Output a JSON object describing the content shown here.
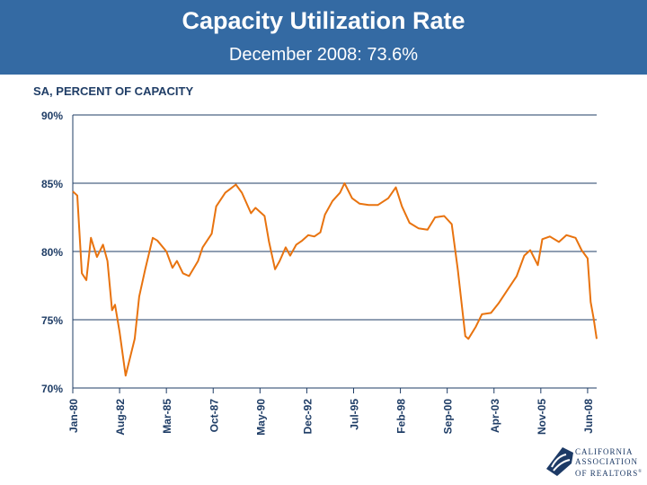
{
  "header": {
    "title": "Capacity Utilization Rate",
    "subtitle": "December 2008: 73.6%"
  },
  "logo": {
    "text": [
      "CALIFORNIA",
      "ASSOCIATION",
      "OF REALTORS®"
    ]
  },
  "chart_data": {
    "type": "line",
    "title": "Capacity Utilization Rate",
    "subtitle": "December 2008: 73.6%",
    "ylabel": "SA, PERCENT OF CAPACITY",
    "xlabel": "",
    "ylim": [
      70,
      90
    ],
    "yticks": [
      "70%",
      "75%",
      "80%",
      "85%",
      "90%"
    ],
    "ytick_values": [
      70,
      75,
      80,
      85,
      90
    ],
    "xticks": [
      "Jan-80",
      "Aug-82",
      "Mar-85",
      "Oct-87",
      "May-90",
      "Dec-92",
      "Jul-95",
      "Feb-98",
      "Sep-00",
      "Apr-03",
      "Nov-05",
      "Jun-08"
    ],
    "xlim": [
      "1980-01",
      "2008-12"
    ],
    "grid": "horizontal",
    "line_color": "#e8730f",
    "series": [
      {
        "points": [
          [
            "1980-01",
            84.4
          ],
          [
            "1980-04",
            84.1
          ],
          [
            "1980-07",
            78.4
          ],
          [
            "1980-10",
            77.9
          ],
          [
            "1981-01",
            81.0
          ],
          [
            "1981-03",
            80.3
          ],
          [
            "1981-05",
            79.6
          ],
          [
            "1981-09",
            80.5
          ],
          [
            "1981-12",
            79.3
          ],
          [
            "1982-03",
            75.7
          ],
          [
            "1982-05",
            76.1
          ],
          [
            "1982-08",
            74.1
          ],
          [
            "1982-12",
            70.9
          ],
          [
            "1983-06",
            73.6
          ],
          [
            "1983-09",
            76.7
          ],
          [
            "1984-01",
            78.7
          ],
          [
            "1984-06",
            81.0
          ],
          [
            "1984-09",
            80.8
          ],
          [
            "1985-03",
            80.0
          ],
          [
            "1985-07",
            78.8
          ],
          [
            "1985-10",
            79.3
          ],
          [
            "1986-02",
            78.4
          ],
          [
            "1986-06",
            78.2
          ],
          [
            "1986-12",
            79.3
          ],
          [
            "1987-03",
            80.3
          ],
          [
            "1987-09",
            81.3
          ],
          [
            "1987-12",
            83.3
          ],
          [
            "1988-06",
            84.3
          ],
          [
            "1989-01",
            84.9
          ],
          [
            "1989-05",
            84.3
          ],
          [
            "1989-11",
            82.8
          ],
          [
            "1990-02",
            83.2
          ],
          [
            "1990-08",
            82.6
          ],
          [
            "1990-11",
            80.7
          ],
          [
            "1991-03",
            78.7
          ],
          [
            "1991-06",
            79.3
          ],
          [
            "1991-10",
            80.3
          ],
          [
            "1992-01",
            79.7
          ],
          [
            "1992-05",
            80.5
          ],
          [
            "1992-09",
            80.8
          ],
          [
            "1993-01",
            81.2
          ],
          [
            "1993-05",
            81.1
          ],
          [
            "1993-09",
            81.4
          ],
          [
            "1993-12",
            82.7
          ],
          [
            "1994-05",
            83.7
          ],
          [
            "1994-10",
            84.3
          ],
          [
            "1995-01",
            85.0
          ],
          [
            "1995-06",
            83.9
          ],
          [
            "1995-11",
            83.5
          ],
          [
            "1996-05",
            83.4
          ],
          [
            "1996-11",
            83.4
          ],
          [
            "1997-06",
            83.9
          ],
          [
            "1997-11",
            84.7
          ],
          [
            "1998-03",
            83.3
          ],
          [
            "1998-08",
            82.1
          ],
          [
            "1999-02",
            81.7
          ],
          [
            "1999-08",
            81.6
          ],
          [
            "2000-01",
            82.5
          ],
          [
            "2000-07",
            82.6
          ],
          [
            "2000-12",
            82.0
          ],
          [
            "2001-04",
            78.7
          ],
          [
            "2001-09",
            73.8
          ],
          [
            "2001-11",
            73.6
          ],
          [
            "2002-04",
            74.5
          ],
          [
            "2002-08",
            75.4
          ],
          [
            "2003-02",
            75.5
          ],
          [
            "2003-07",
            76.2
          ],
          [
            "2004-01",
            77.2
          ],
          [
            "2004-07",
            78.2
          ],
          [
            "2004-12",
            79.7
          ],
          [
            "2005-04",
            80.1
          ],
          [
            "2005-09",
            79.0
          ],
          [
            "2005-12",
            80.9
          ],
          [
            "2006-05",
            81.1
          ],
          [
            "2006-11",
            80.7
          ],
          [
            "2007-04",
            81.2
          ],
          [
            "2007-10",
            81.0
          ],
          [
            "2008-02",
            80.1
          ],
          [
            "2008-06",
            79.5
          ],
          [
            "2008-08",
            76.3
          ],
          [
            "2008-10",
            75.1
          ],
          [
            "2008-12",
            73.6
          ]
        ]
      }
    ]
  }
}
